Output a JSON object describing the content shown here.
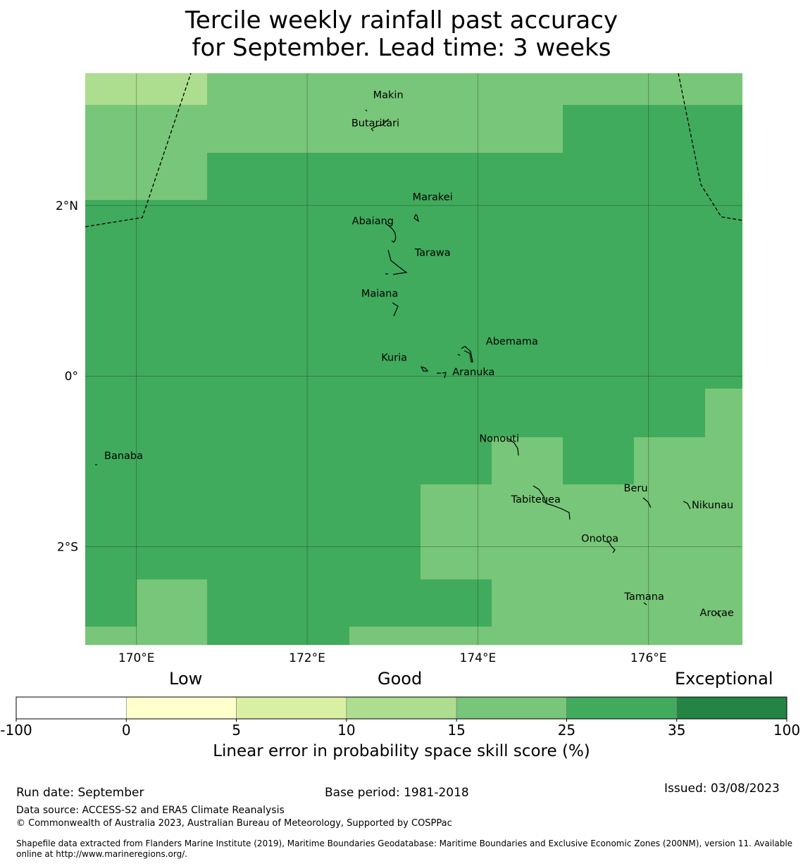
{
  "title_line1": "Tercile weekly rainfall past accuracy",
  "title_line2": "for September. Lead time: 3 weeks",
  "map": {
    "lon_range": [
      169.4,
      177.1
    ],
    "lat_range": [
      -3.15,
      3.55
    ],
    "lon_ticks": [
      {
        "value": 170,
        "label": "170°E"
      },
      {
        "value": 172,
        "label": "172°E"
      },
      {
        "value": 174,
        "label": "174°E"
      },
      {
        "value": 176,
        "label": "176°E"
      }
    ],
    "lat_ticks": [
      {
        "value": 2,
        "label": "2°N"
      },
      {
        "value": 0,
        "label": "0°"
      },
      {
        "value": -2,
        "label": "2°S"
      }
    ],
    "places": [
      {
        "name": "Makin",
        "lon": 172.95,
        "lat": 3.3
      },
      {
        "name": "Butaritari",
        "lon": 172.8,
        "lat": 2.97
      },
      {
        "name": "Marakei",
        "lon": 173.47,
        "lat": 2.1
      },
      {
        "name": "Abaiang",
        "lon": 172.77,
        "lat": 1.82
      },
      {
        "name": "Tarawa",
        "lon": 173.47,
        "lat": 1.45
      },
      {
        "name": "Maiana",
        "lon": 172.85,
        "lat": 0.97
      },
      {
        "name": "Abemama",
        "lon": 174.4,
        "lat": 0.41
      },
      {
        "name": "Kuria",
        "lon": 173.02,
        "lat": 0.22
      },
      {
        "name": "Aranuka",
        "lon": 173.95,
        "lat": 0.05
      },
      {
        "name": "Nonouti",
        "lon": 174.25,
        "lat": -0.73
      },
      {
        "name": "Banaba",
        "lon": 169.85,
        "lat": -0.93
      },
      {
        "name": "Beru",
        "lon": 175.85,
        "lat": -1.31
      },
      {
        "name": "Tabiteuea",
        "lon": 174.68,
        "lat": -1.44
      },
      {
        "name": "Nikunau",
        "lon": 176.75,
        "lat": -1.51
      },
      {
        "name": "Onotoa",
        "lon": 175.43,
        "lat": -1.9
      },
      {
        "name": "Tamana",
        "lon": 175.95,
        "lat": -2.58
      },
      {
        "name": "Arorae",
        "lon": 176.8,
        "lat": -2.77
      }
    ]
  },
  "colorbar": {
    "categories": [
      "Low",
      "Good",
      "Exceptional"
    ],
    "ticks": [
      "-100",
      "0",
      "5",
      "10",
      "15",
      "25",
      "35",
      "100"
    ],
    "colors": [
      "#ffffff",
      "#ffffcc",
      "#d9f0a3",
      "#addd8e",
      "#78c679",
      "#41ab5d",
      "#238443"
    ],
    "label": "Linear error in probability space skill score (%)"
  },
  "footer": {
    "run_date": "Run date: September",
    "base_period": "Base period: 1981-2018",
    "issued": "Issued: 03/08/2023",
    "data_source": "Data source: ACCESS-S2 and ERA5 Climate Reanalysis",
    "copyright": "© Commonwealth of Australia 2023, Australian Bureau of Meteorology, Supported by COSPPac",
    "shapefile_line1": "Shapefile data extracted from Flanders Marine Institute (2019), Maritime Boundaries Geodatabase: Maritime Boundaries and Exclusive Economic Zones (200NM), version 11. Available",
    "shapefile_line2": "online at http://www.marineregions.org/."
  }
}
